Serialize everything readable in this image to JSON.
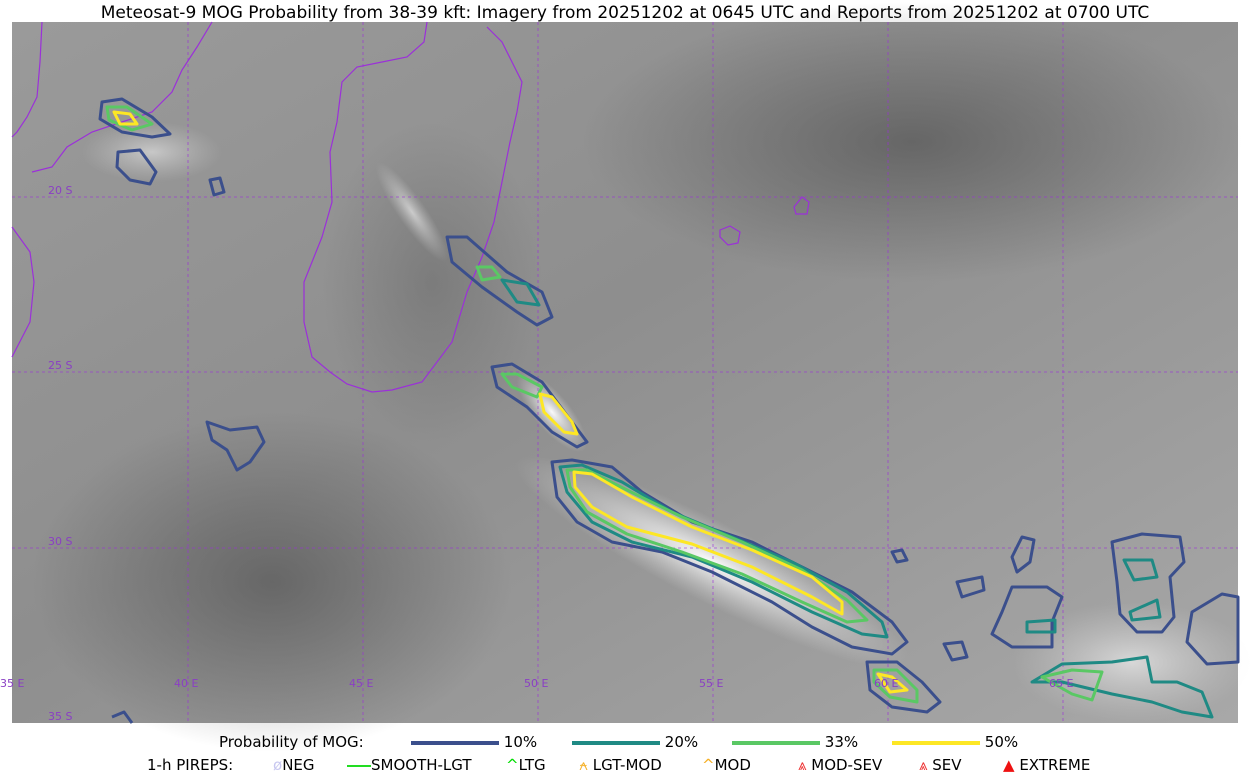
{
  "title": "Meteosat-9 MOG Probability from 38-39 kft: Imagery from 20251202 at 0645 UTC and Reports from 20251202 at 0700 UTC",
  "map": {
    "lon_labels": [
      "35 E",
      "40 E",
      "45 E",
      "50 E",
      "55 E",
      "60 E",
      "65 E"
    ],
    "lat_labels": [
      "20 S",
      "25 S",
      "30 S",
      "35 S"
    ],
    "coastline_color": "#9b30d9",
    "grid_color": "#9b30d9"
  },
  "legend": {
    "probability_label": "Probability of MOG:",
    "probability_levels": [
      {
        "label": "10%",
        "color": "#3b4f8c"
      },
      {
        "label": "20%",
        "color": "#1f8a84"
      },
      {
        "label": "33%",
        "color": "#5ac864"
      },
      {
        "label": "50%",
        "color": "#fde725"
      }
    ],
    "pireps_label": "1-h PIREPS:",
    "pireps": [
      {
        "label": "NEG",
        "color": "#c8c8f0",
        "icon": "neg-circle-icon"
      },
      {
        "label": "SMOOTH-LGT",
        "color": "#22dd22",
        "icon": "line-icon"
      },
      {
        "label": "LTG",
        "color": "#00dd00",
        "icon": "caret-icon"
      },
      {
        "label": "LGT-MOD",
        "color": "#f5b027",
        "icon": "caret-bar-icon"
      },
      {
        "label": "MOD",
        "color": "#f5b027",
        "icon": "caret-icon"
      },
      {
        "label": "MOD-SEV",
        "color": "#ee3333",
        "icon": "double-caret-bar-icon"
      },
      {
        "label": "SEV",
        "color": "#ee3333",
        "icon": "double-caret-icon"
      },
      {
        "label": "EXTREME",
        "color": "#ee1111",
        "icon": "filled-triangle-icon"
      }
    ]
  }
}
